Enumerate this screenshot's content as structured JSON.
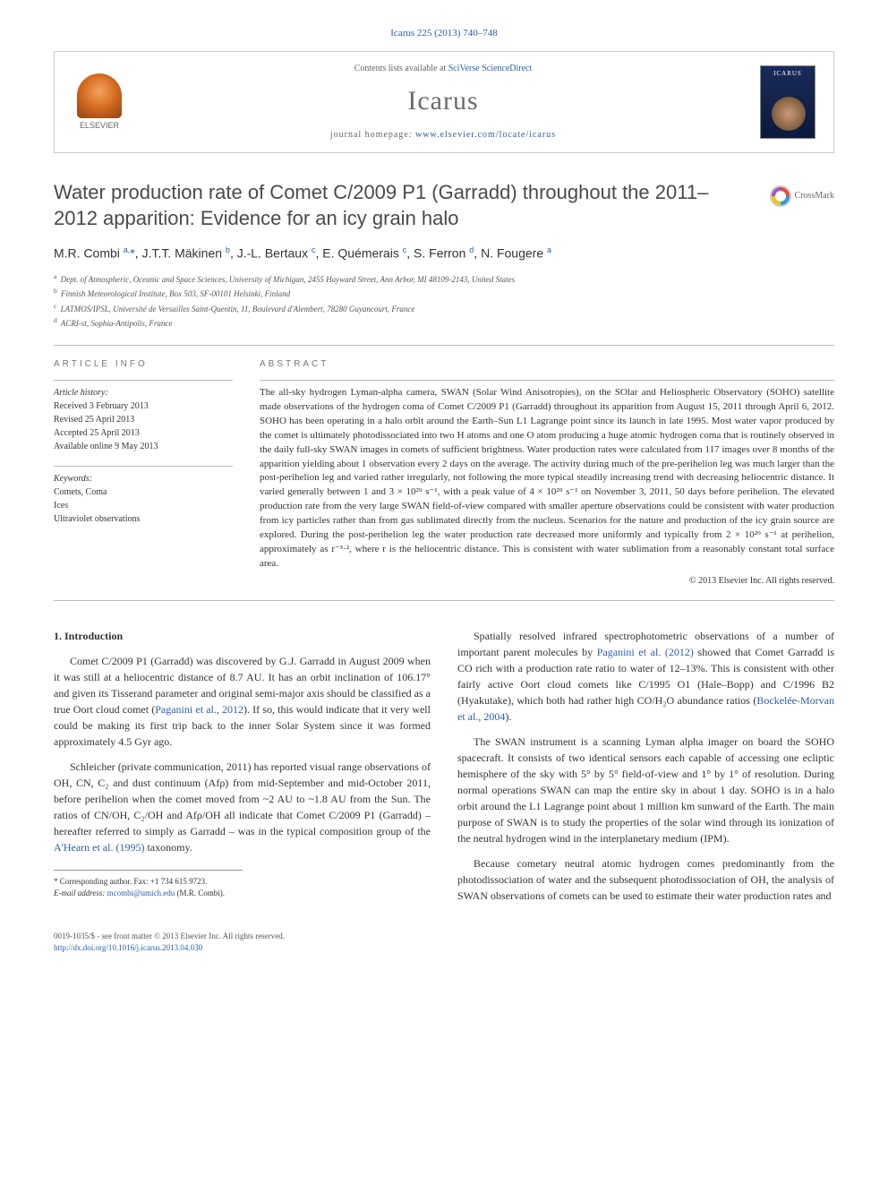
{
  "citation": "Icarus 225 (2013) 740–748",
  "header": {
    "contents_prefix": "Contents lists available at ",
    "contents_link": "SciVerse ScienceDirect",
    "journal": "Icarus",
    "homepage_prefix": "journal homepage: ",
    "homepage_link": "www.elsevier.com/locate/icarus",
    "publisher": "ELSEVIER"
  },
  "crossmark": "CrossMark",
  "title": "Water production rate of Comet C/2009 P1 (Garradd) throughout the 2011–2012 apparition: Evidence for an icy grain halo",
  "authors_html": "M.R. Combi <sup>a,</sup><a>*</a>, J.T.T. Mäkinen <sup>b</sup>, J.-L. Bertaux <sup>c</sup>, E. Quémerais <sup>c</sup>, S. Ferron <sup>d</sup>, N. Fougere <sup>a</sup>",
  "affiliations": [
    {
      "sup": "a",
      "text": "Dept. of Atmospheric, Oceanic and Space Sciences, University of Michigan, 2455 Hayward Street, Ann Arbor, MI 48109-2143, United States"
    },
    {
      "sup": "b",
      "text": "Finnish Meteorological Institute, Box 503, SF-00101 Helsinki, Finland"
    },
    {
      "sup": "c",
      "text": "LATMOS/IPSL, Université de Versailles Saint-Quentin, 11, Boulevard d'Alembert, 78280 Guyancourt, France"
    },
    {
      "sup": "d",
      "text": "ACRI-st, Sophia-Antipolis, France"
    }
  ],
  "info": {
    "heading": "ARTICLE INFO",
    "history_label": "Article history:",
    "history": [
      "Received 3 February 2013",
      "Revised 25 April 2013",
      "Accepted 25 April 2013",
      "Available online 9 May 2013"
    ],
    "keywords_label": "Keywords:",
    "keywords": [
      "Comets, Coma",
      "Ices",
      "Ultraviolet observations"
    ]
  },
  "abstract": {
    "heading": "ABSTRACT",
    "text": "The all-sky hydrogen Lyman-alpha camera, SWAN (Solar Wind Anisotropies), on the SOlar and Heliospheric Observatory (SOHO) satellite made observations of the hydrogen coma of Comet C/2009 P1 (Garradd) throughout its apparition from August 15, 2011 through April 6, 2012. SOHO has been operating in a halo orbit around the Earth–Sun L1 Lagrange point since its launch in late 1995. Most water vapor produced by the comet is ultimately photodissociated into two H atoms and one O atom producing a huge atomic hydrogen coma that is routinely observed in the daily full-sky SWAN images in comets of sufficient brightness. Water production rates were calculated from 117 images over 8 months of the apparition yielding about 1 observation every 2 days on the average. The activity during much of the pre-perihelion leg was much larger than the post-perihelion leg and varied rather irregularly, not following the more typical steadily increasing trend with decreasing heliocentric distance. It varied generally between 1 and 3 × 10²⁹ s⁻¹, with a peak value of 4 × 10²⁹ s⁻¹ on November 3, 2011, 50 days before perihelion. The elevated production rate from the very large SWAN field-of-view compared with smaller aperture observations could be consistent with water production from icy particles rather than from gas sublimated directly from the nucleus. Scenarios for the nature and production of the icy grain source are explored. During the post-perihelion leg the water production rate decreased more uniformly and typically from 2 × 10²⁹ s⁻¹ at perihelion, approximately as r⁻³·², where r is the heliocentric distance. This is consistent with water sublimation from a reasonably constant total surface area.",
    "copyright": "© 2013 Elsevier Inc. All rights reserved."
  },
  "body": {
    "section_heading": "1. Introduction",
    "left_paras": [
      "Comet C/2009 P1 (Garradd) was discovered by G.J. Garradd in August 2009 when it was still at a heliocentric distance of 8.7 AU. It has an orbit inclination of 106.17° and given its Tisserand parameter and original semi-major axis should be classified as a true Oort cloud comet (<span class=\"ref-link\">Paganini et al., 2012</span>). If so, this would indicate that it very well could be making its first trip back to the inner Solar System since it was formed approximately 4.5 Gyr ago.",
      "Schleicher (private communication, 2011) has reported visual range observations of OH, CN, C₂ and dust continuum (Afρ) from mid-September and mid-October 2011, before perihelion when the comet moved from ~2 AU to ~1.8 AU from the Sun. The ratios of CN/OH, C₂/OH and Afρ/OH all indicate that Comet C/2009 P1 (Garradd) – hereafter referred to simply as Garradd – was in the typical composition group of the <span class=\"ref-link\">A'Hearn et al. (1995)</span> taxonomy."
    ],
    "right_paras": [
      "Spatially resolved infrared spectrophotometric observations of a number of important parent molecules by <span class=\"ref-link\">Paganini et al. (2012)</span> showed that Comet Garradd is CO rich with a production rate ratio to water of 12–13%. This is consistent with other fairly active Oort cloud comets like C/1995 O1 (Hale–Bopp) and C/1996 B2 (Hyakutake), which both had rather high CO/H₂O abundance ratios (<span class=\"ref-link\">Bockelée-Morvan et al., 2004</span>).",
      "The SWAN instrument is a scanning Lyman alpha imager on board the SOHO spacecraft. It consists of two identical sensors each capable of accessing one ecliptic hemisphere of the sky with 5° by 5° field-of-view and 1° by 1° of resolution. During normal operations SWAN can map the entire sky in about 1 day. SOHO is in a halo orbit around the L1 Lagrange point about 1 million km sunward of the Earth. The main purpose of SWAN is to study the properties of the solar wind through its ionization of the neutral hydrogen wind in the interplanetary medium (IPM).",
      "Because cometary neutral atomic hydrogen comes predominantly from the photodissociation of water and the subsequent photodissociation of OH, the analysis of SWAN observations of comets can be used to estimate their water production rates and"
    ]
  },
  "footnote": {
    "corr_label": "* Corresponding author. Fax: +1 734 615 9723.",
    "email_label": "E-mail address:",
    "email": "mcombi@umich.edu",
    "email_who": "(M.R. Combi)."
  },
  "footer": {
    "issn": "0019-1035/$ - see front matter © 2013 Elsevier Inc. All rights reserved.",
    "doi_label": "http://dx.doi.org/",
    "doi": "10.1016/j.icarus.2013.04.030"
  }
}
